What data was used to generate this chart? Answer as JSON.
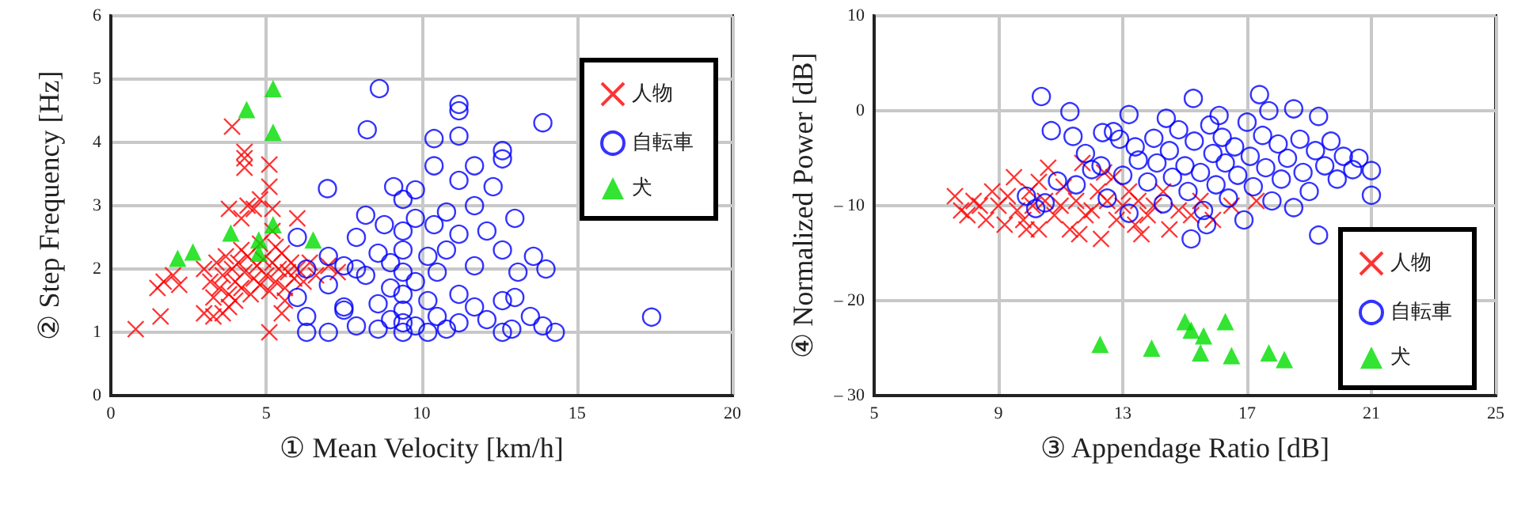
{
  "chart_data": [
    {
      "type": "scatter",
      "xlabel": "① Mean Velocity [km/h]",
      "ylabel": "② Step Frequency [Hz]",
      "xlim": [
        0,
        20
      ],
      "xticks": [
        0,
        5,
        10,
        15,
        20
      ],
      "ylim": [
        0,
        6
      ],
      "yticks": [
        0,
        1,
        2,
        3,
        4,
        5,
        6
      ],
      "grid": true,
      "legend": "top right",
      "series": [
        {
          "name": "人物",
          "color": "#ff0000",
          "marker": "cross",
          "x": [
            0.8,
            1.6,
            1.5,
            1.7,
            2.0,
            2.2,
            3.0,
            3.3,
            3.6,
            3.8,
            3.8,
            3.9,
            4.3,
            4.3,
            4.3,
            4.2,
            4.6,
            4.8,
            5.1,
            5.1,
            5.2,
            5.1,
            5.5,
            6.0,
            5.2,
            4.4,
            3.0,
            3.2,
            3.4,
            3.5,
            3.6,
            3.7,
            3.8,
            3.9,
            4.0,
            4.1,
            4.2,
            4.3,
            4.4,
            4.5,
            4.6,
            4.7,
            4.8,
            4.9,
            5.0,
            5.1,
            5.2,
            5.3,
            5.4,
            5.5,
            5.6,
            5.7,
            5.8,
            5.9,
            6.0,
            6.2,
            6.4,
            6.6,
            7.0,
            7.3,
            4.2,
            4.8,
            5.3,
            3.3,
            4.0,
            5.6
          ],
          "values": [
            1.05,
            1.25,
            1.7,
            1.8,
            1.9,
            1.75,
            1.3,
            1.25,
            1.3,
            1.4,
            2.95,
            4.25,
            3.85,
            3.75,
            3.6,
            2.8,
            2.95,
            3.1,
            3.3,
            3.65,
            2.6,
            1.0,
            1.3,
            2.8,
            2.95,
            3.0,
            2.0,
            1.8,
            2.1,
            1.7,
            1.9,
            2.2,
            1.6,
            2.0,
            1.8,
            2.1,
            1.7,
            1.95,
            2.2,
            1.6,
            1.85,
            2.05,
            1.75,
            2.15,
            1.9,
            1.65,
            2.1,
            1.8,
            2.0,
            2.25,
            1.7,
            1.95,
            2.1,
            1.85,
            2.0,
            1.8,
            2.1,
            1.9,
            2.05,
            1.95,
            2.3,
            2.4,
            2.35,
            1.55,
            1.5,
            1.5
          ]
        },
        {
          "name": "自転車",
          "color": "#0000ff",
          "marker": "circle",
          "x": [
            6.0,
            6.0,
            6.3,
            6.3,
            6.97,
            6.3,
            7.0,
            7.0,
            7.0,
            7.5,
            7.5,
            7.5,
            7.9,
            7.9,
            7.9,
            8.2,
            8.2,
            8.25,
            8.64,
            8.6,
            8.6,
            8.6,
            8.8,
            9.0,
            9.0,
            9.0,
            9.1,
            9.4,
            9.4,
            9.4,
            9.4,
            9.4,
            9.4,
            9.4,
            9.4,
            9.8,
            9.8,
            9.8,
            9.8,
            10.2,
            10.2,
            10.2,
            10.4,
            10.4,
            10.4,
            10.5,
            10.5,
            10.8,
            10.8,
            10.8,
            11.2,
            11.2,
            11.2,
            11.2,
            11.2,
            11.2,
            11.2,
            11.7,
            11.7,
            11.7,
            11.7,
            12.1,
            12.1,
            12.3,
            12.6,
            12.6,
            12.6,
            12.6,
            12.6,
            13.0,
            13.0,
            13.1,
            13.5,
            13.6,
            13.9,
            13.9,
            14.3,
            17.4,
            14.0,
            12.9
          ],
          "values": [
            2.5,
            1.55,
            1.25,
            1.0,
            3.27,
            2.0,
            2.2,
            1.75,
            1.0,
            1.4,
            1.35,
            2.05,
            2.5,
            1.1,
            2.0,
            2.85,
            1.9,
            4.2,
            4.85,
            2.25,
            1.45,
            1.05,
            2.7,
            1.2,
            1.7,
            2.1,
            3.3,
            3.1,
            2.6,
            2.3,
            1.95,
            1.6,
            1.35,
            1.15,
            1.0,
            3.25,
            2.8,
            1.8,
            1.1,
            2.2,
            1.5,
            1.0,
            4.06,
            3.63,
            2.7,
            1.95,
            1.25,
            2.9,
            2.3,
            1.05,
            4.6,
            4.5,
            4.1,
            3.4,
            2.55,
            1.6,
            1.15,
            3.63,
            3.0,
            2.05,
            1.4,
            2.6,
            1.2,
            3.3,
            3.87,
            3.74,
            2.3,
            1.5,
            1.0,
            2.8,
            1.55,
            1.95,
            1.25,
            2.2,
            4.31,
            1.1,
            1.0,
            1.24,
            2.0,
            1.05
          ]
        },
        {
          "name": "犬",
          "color": "#00dd00",
          "marker": "triangle",
          "x": [
            2.15,
            2.64,
            3.86,
            4.37,
            5.22,
            5.22,
            5.22,
            4.76,
            4.76,
            6.51
          ],
          "values": [
            2.17,
            2.27,
            2.57,
            4.52,
            4.85,
            4.16,
            2.7,
            2.46,
            2.25,
            2.46
          ]
        }
      ]
    },
    {
      "type": "scatter",
      "xlabel": "③ Appendage Ratio [dB]",
      "ylabel": "④ Normalized Power [dB]",
      "xlim": [
        5,
        25
      ],
      "xticks": [
        5,
        9,
        13,
        17,
        21,
        25
      ],
      "ylim": [
        -30,
        10
      ],
      "yticks": [
        {
          "value": -30,
          "label": "– 30"
        },
        {
          "value": -20,
          "label": "– 20"
        },
        {
          "value": -10,
          "label": "– 10"
        },
        0,
        10
      ],
      "grid": true,
      "legend": "bottom right",
      "series": [
        {
          "name": "人物",
          "color": "#ff0000",
          "marker": "cross",
          "x": [
            7.6,
            7.8,
            8.0,
            8.2,
            8.4,
            8.6,
            8.8,
            9.0,
            9.2,
            9.3,
            9.5,
            9.6,
            9.8,
            10.0,
            10.1,
            10.3,
            10.5,
            10.6,
            10.8,
            11.0,
            11.1,
            11.3,
            11.5,
            11.7,
            11.8,
            12.0,
            12.2,
            12.3,
            12.5,
            12.7,
            12.8,
            13.0,
            13.2,
            13.4,
            13.5,
            13.8,
            14.0,
            14.3,
            14.5,
            14.8,
            15.2,
            15.5,
            15.9,
            16.5,
            17.3,
            9.9,
            11.6,
            12.4,
            10.3,
            13.6
          ],
          "values": [
            -9,
            -10.5,
            -11,
            -9.5,
            -10,
            -11.5,
            -8.5,
            -10,
            -12,
            -9,
            -7,
            -10.5,
            -11.5,
            -8.5,
            -10,
            -12.5,
            -9.5,
            -6,
            -11,
            -10,
            -8,
            -12.5,
            -9.5,
            -5.5,
            -11,
            -10.5,
            -8.5,
            -13.5,
            -9.5,
            -7,
            -11.5,
            -10,
            -8.5,
            -12,
            -9.5,
            -11,
            -10,
            -8.5,
            -12.5,
            -10.5,
            -11,
            -9.5,
            -11.5,
            -10,
            -9.5,
            -12.5,
            -13,
            -6.5,
            -7.5,
            -13
          ]
        },
        {
          "name": "自転車",
          "color": "#0000ff",
          "marker": "circle",
          "x": [
            10.38,
            11.3,
            13.2,
            10.7,
            11.4,
            12.35,
            12.7,
            15.27,
            17.4,
            18.5,
            19.3,
            21.0,
            21.0,
            19.3,
            15.2,
            9.9,
            10.2,
            10.5,
            10.9,
            11.5,
            11.8,
            12.0,
            12.3,
            12.5,
            13.0,
            13.2,
            13.4,
            13.5,
            13.8,
            14.0,
            14.1,
            14.3,
            14.5,
            14.6,
            14.8,
            15.0,
            15.1,
            15.3,
            15.5,
            15.6,
            15.8,
            15.9,
            16.0,
            16.2,
            16.3,
            16.4,
            16.6,
            16.7,
            16.9,
            17.0,
            17.1,
            17.2,
            17.5,
            17.6,
            17.8,
            18.0,
            18.1,
            18.3,
            18.5,
            18.7,
            18.8,
            19.0,
            19.2,
            19.5,
            19.7,
            19.9,
            20.1,
            20.4,
            20.6,
            16.1,
            14.4,
            12.9,
            17.7,
            15.7
          ],
          "values": [
            1.5,
            -0.1,
            -0.4,
            -2.1,
            -2.7,
            -2.3,
            -2.2,
            1.3,
            1.7,
            0.2,
            -0.6,
            -6.3,
            -8.9,
            -13.1,
            -13.5,
            -9,
            -10.3,
            -9.7,
            -7.4,
            -7.8,
            -4.5,
            -6.2,
            -5.8,
            -9.2,
            -6.8,
            -10.8,
            -3.8,
            -5.2,
            -7.5,
            -2.9,
            -5.5,
            -9.8,
            -4.2,
            -7.0,
            -2.0,
            -5.8,
            -8.5,
            -3.2,
            -6.5,
            -10.5,
            -1.5,
            -4.5,
            -7.8,
            -2.8,
            -5.5,
            -9.2,
            -3.8,
            -6.8,
            -11.5,
            -1.2,
            -4.8,
            -8.0,
            -2.6,
            -6.0,
            -9.5,
            -3.5,
            -7.2,
            -5.0,
            -10.2,
            -3.0,
            -6.5,
            -8.5,
            -4.2,
            -5.8,
            -3.2,
            -7.2,
            -4.8,
            -6.2,
            -5.0,
            -0.5,
            -0.8,
            -3.0,
            0.0,
            -12.0
          ]
        },
        {
          "name": "犬",
          "color": "#00dd00",
          "marker": "triangle",
          "x": [
            12.27,
            13.93,
            15.0,
            15.2,
            15.6,
            16.3,
            15.5,
            16.5,
            17.7,
            18.2
          ],
          "values": [
            -24.6,
            -25,
            -22.2,
            -23.1,
            -23.7,
            -22.2,
            -25.5,
            -25.8,
            -25.5,
            -26.2
          ]
        }
      ]
    }
  ]
}
